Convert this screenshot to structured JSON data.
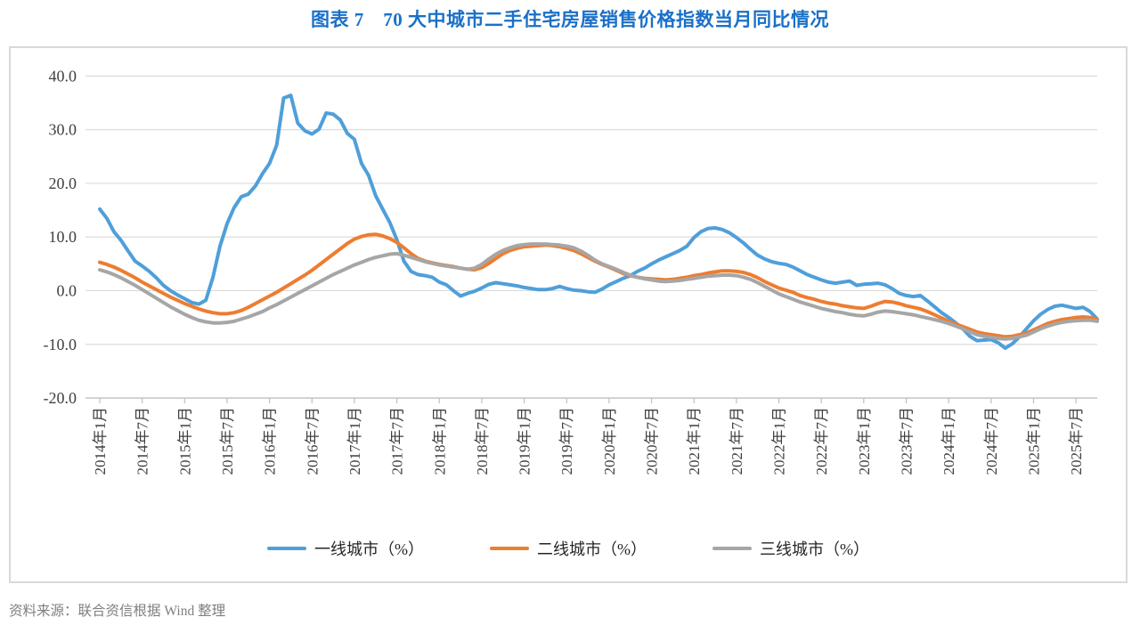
{
  "title": "图表 7　70 大中城市二手住宅房屋销售价格指数当月同比情况",
  "title_color": "#1a70c8",
  "source_note": "资料来源：联合资信根据 Wind 整理",
  "chart_data": {
    "type": "line",
    "title": "70大中城市二手住宅房屋销售价格指数当月同比情况",
    "xlabel": "",
    "ylabel": "",
    "x_start_month": "2014年1月",
    "x_end_month": "2025年10月",
    "x_tick_labels": [
      "2014年1月",
      "2014年7月",
      "2015年1月",
      "2015年7月",
      "2016年1月",
      "2016年7月",
      "2017年1月",
      "2017年7月",
      "2018年1月",
      "2018年7月",
      "2019年1月",
      "2019年7月",
      "2020年1月",
      "2020年7月",
      "2021年1月",
      "2021年7月",
      "2022年1月",
      "2022年7月",
      "2023年1月",
      "2023年7月",
      "2024年1月",
      "2024年7月",
      "2025年1月",
      "2025年7月"
    ],
    "x_tick_interval_months": 6,
    "ylim": [
      -20,
      40
    ],
    "y_tick_labels": [
      "40.0",
      "30.0",
      "20.0",
      "10.0",
      "0.0",
      "-10.0",
      "-20.0"
    ],
    "y_tick_values": [
      40,
      30,
      20,
      10,
      0,
      -10,
      -20
    ],
    "grid": true,
    "gridline_color": "#d9d9d9",
    "axis_color": "#bfbfbf",
    "legend_position": "bottom",
    "series": [
      {
        "name": "一线城市（%）",
        "color": "#4f9fd9",
        "values": [
          15.2,
          13.5,
          11.0,
          9.4,
          7.4,
          5.5,
          4.6,
          3.6,
          2.4,
          1.0,
          0.0,
          -0.8,
          -1.5,
          -2.2,
          -2.5,
          -1.8,
          2.5,
          8.3,
          12.5,
          15.5,
          17.5,
          18.0,
          19.5,
          21.8,
          23.7,
          27.1,
          35.9,
          36.4,
          31.2,
          29.8,
          29.2,
          30.1,
          33.1,
          32.9,
          31.8,
          29.3,
          28.2,
          23.7,
          21.5,
          17.7,
          15.2,
          12.7,
          9.5,
          5.5,
          3.6,
          3.0,
          2.8,
          2.5,
          1.6,
          1.1,
          0.0,
          -1.0,
          -0.5,
          -0.1,
          0.5,
          1.2,
          1.5,
          1.3,
          1.1,
          0.9,
          0.6,
          0.4,
          0.2,
          0.2,
          0.4,
          0.8,
          0.4,
          0.1,
          0.0,
          -0.2,
          -0.3,
          0.3,
          1.1,
          1.7,
          2.3,
          2.8,
          3.6,
          4.2,
          5.0,
          5.7,
          6.3,
          6.9,
          7.5,
          8.3,
          9.9,
          11.0,
          11.6,
          11.7,
          11.4,
          10.8,
          9.9,
          8.9,
          7.7,
          6.6,
          5.9,
          5.4,
          5.1,
          4.9,
          4.4,
          3.7,
          3.0,
          2.5,
          2.0,
          1.6,
          1.4,
          1.6,
          1.8,
          1.0,
          1.2,
          1.3,
          1.4,
          1.1,
          0.4,
          -0.5,
          -0.9,
          -1.1,
          -0.9,
          -1.9,
          -3.0,
          -4.1,
          -5.0,
          -6.0,
          -7.1,
          -8.5,
          -9.3,
          -9.2,
          -9.1,
          -9.7,
          -10.7,
          -9.9,
          -8.6,
          -7.1,
          -5.6,
          -4.4,
          -3.5,
          -2.9,
          -2.7,
          -3.0,
          -3.3,
          -3.1,
          -3.9,
          -5.3
        ]
      },
      {
        "name": "二线城市（%）",
        "color": "#ed7d31",
        "values": [
          5.3,
          4.9,
          4.4,
          3.8,
          3.1,
          2.4,
          1.6,
          0.9,
          0.2,
          -0.5,
          -1.2,
          -1.8,
          -2.4,
          -2.9,
          -3.4,
          -3.8,
          -4.1,
          -4.3,
          -4.3,
          -4.1,
          -3.7,
          -3.1,
          -2.4,
          -1.7,
          -1.0,
          -0.3,
          0.5,
          1.3,
          2.1,
          2.9,
          3.8,
          4.8,
          5.8,
          6.8,
          7.8,
          8.8,
          9.6,
          10.1,
          10.4,
          10.5,
          10.2,
          9.7,
          9.0,
          8.0,
          6.9,
          6.0,
          5.5,
          5.2,
          4.9,
          4.7,
          4.5,
          4.2,
          4.0,
          3.9,
          4.3,
          5.1,
          6.0,
          6.9,
          7.5,
          7.9,
          8.2,
          8.3,
          8.4,
          8.5,
          8.4,
          8.2,
          7.9,
          7.5,
          6.9,
          6.2,
          5.5,
          4.9,
          4.4,
          3.8,
          3.2,
          2.8,
          2.5,
          2.3,
          2.2,
          2.1,
          2.0,
          2.1,
          2.3,
          2.5,
          2.8,
          3.0,
          3.3,
          3.5,
          3.7,
          3.7,
          3.6,
          3.4,
          3.0,
          2.4,
          1.7,
          1.1,
          0.5,
          0.1,
          -0.3,
          -0.9,
          -1.3,
          -1.6,
          -2.0,
          -2.3,
          -2.5,
          -2.8,
          -3.0,
          -3.2,
          -3.3,
          -2.9,
          -2.4,
          -2.0,
          -2.1,
          -2.4,
          -2.8,
          -3.1,
          -3.4,
          -3.9,
          -4.5,
          -5.1,
          -5.7,
          -6.2,
          -6.7,
          -7.2,
          -7.7,
          -8.0,
          -8.2,
          -8.4,
          -8.6,
          -8.5,
          -8.2,
          -7.9,
          -7.3,
          -6.7,
          -6.1,
          -5.7,
          -5.4,
          -5.2,
          -5.0,
          -4.9,
          -5.0,
          -5.4
        ]
      },
      {
        "name": "三线城市（%）",
        "color": "#a6a6a6",
        "values": [
          3.9,
          3.5,
          3.0,
          2.4,
          1.7,
          1.0,
          0.2,
          -0.6,
          -1.4,
          -2.2,
          -3.0,
          -3.7,
          -4.4,
          -5.0,
          -5.5,
          -5.8,
          -6.0,
          -6.0,
          -5.9,
          -5.7,
          -5.3,
          -4.9,
          -4.4,
          -3.9,
          -3.2,
          -2.6,
          -1.9,
          -1.2,
          -0.5,
          0.2,
          0.9,
          1.6,
          2.3,
          3.0,
          3.6,
          4.2,
          4.8,
          5.3,
          5.8,
          6.2,
          6.5,
          6.8,
          6.9,
          6.6,
          6.2,
          5.8,
          5.4,
          5.1,
          4.8,
          4.6,
          4.4,
          4.2,
          4.0,
          4.2,
          4.9,
          5.9,
          6.8,
          7.5,
          8.0,
          8.4,
          8.6,
          8.7,
          8.7,
          8.7,
          8.6,
          8.5,
          8.3,
          8.0,
          7.4,
          6.6,
          5.7,
          5.0,
          4.5,
          4.0,
          3.4,
          2.9,
          2.5,
          2.2,
          2.0,
          1.8,
          1.7,
          1.8,
          1.9,
          2.1,
          2.3,
          2.5,
          2.7,
          2.8,
          2.9,
          2.9,
          2.8,
          2.5,
          2.1,
          1.5,
          0.8,
          0.1,
          -0.6,
          -1.1,
          -1.6,
          -2.1,
          -2.5,
          -2.9,
          -3.3,
          -3.6,
          -3.9,
          -4.1,
          -4.4,
          -4.6,
          -4.7,
          -4.4,
          -4.0,
          -3.8,
          -3.9,
          -4.1,
          -4.3,
          -4.5,
          -4.8,
          -5.1,
          -5.4,
          -5.7,
          -6.1,
          -6.6,
          -7.1,
          -7.7,
          -8.2,
          -8.5,
          -8.7,
          -8.9,
          -9.0,
          -8.9,
          -8.6,
          -8.3,
          -7.7,
          -7.1,
          -6.6,
          -6.2,
          -5.9,
          -5.7,
          -5.6,
          -5.5,
          -5.5,
          -5.7
        ]
      }
    ]
  }
}
